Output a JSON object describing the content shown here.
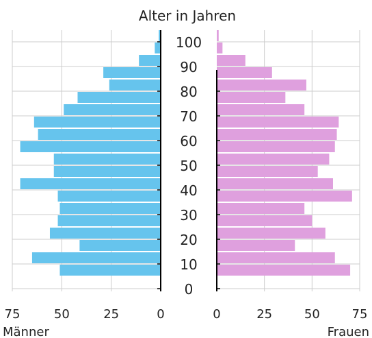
{
  "chart_data": {
    "type": "bar",
    "title": "Alter in Jahren",
    "age_ticks": [
      "100",
      "90",
      "80",
      "70",
      "60",
      "50",
      "40",
      "30",
      "20",
      "10",
      "0"
    ],
    "age_groups": [
      100,
      95,
      90,
      85,
      80,
      75,
      70,
      65,
      60,
      55,
      50,
      45,
      40,
      35,
      30,
      25,
      20,
      15,
      10,
      5,
      0
    ],
    "xlim": [
      0,
      75
    ],
    "x_ticks_left": [
      "75",
      "50",
      "25",
      "0"
    ],
    "x_ticks_right": [
      "0",
      "25",
      "50",
      "75"
    ],
    "grid": true,
    "series": [
      {
        "name": "Männer",
        "color": "#66c4ed",
        "values": [
          1,
          3,
          11,
          29,
          26,
          42,
          49,
          64,
          62,
          71,
          54,
          54,
          71,
          52,
          51,
          52,
          56,
          41,
          65,
          51,
          0
        ]
      },
      {
        "name": "Frauen",
        "color": "#dfa0de",
        "values": [
          1,
          3,
          15,
          29,
          47,
          36,
          46,
          64,
          63,
          62,
          59,
          53,
          61,
          71,
          46,
          50,
          57,
          41,
          62,
          70,
          0
        ]
      }
    ]
  }
}
